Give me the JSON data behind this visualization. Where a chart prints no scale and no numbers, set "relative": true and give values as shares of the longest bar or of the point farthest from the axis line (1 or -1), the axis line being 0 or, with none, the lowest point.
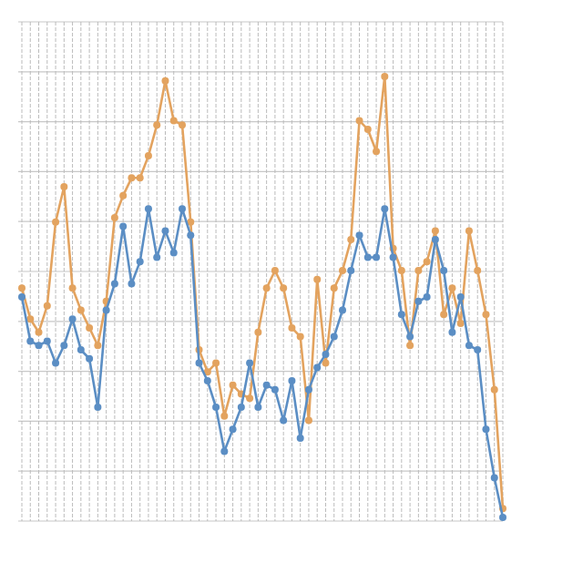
{
  "chart_data": {
    "type": "line",
    "relative": true,
    "grid": true,
    "marker": "circle",
    "categories": [
      null,
      null,
      null,
      null,
      null,
      null,
      null,
      null,
      null,
      null,
      null,
      null,
      null,
      null,
      null,
      null,
      null,
      null,
      null,
      null,
      null,
      null,
      null,
      null,
      null,
      null,
      null,
      null,
      null,
      null,
      null,
      null,
      null,
      null,
      null,
      null,
      null,
      null,
      null,
      null,
      null,
      null,
      null,
      null,
      null,
      null,
      null,
      null,
      null,
      null,
      null,
      null,
      null,
      null,
      null,
      null,
      null,
      null
    ],
    "series": [
      {
        "color": "#e3a35f",
        "values": [
          0.52,
          0.45,
          0.42,
          0.48,
          0.67,
          0.75,
          0.52,
          0.47,
          0.43,
          0.39,
          0.49,
          0.68,
          0.73,
          0.77,
          0.77,
          0.82,
          0.89,
          0.99,
          0.9,
          0.89,
          0.67,
          0.38,
          0.33,
          0.35,
          0.23,
          0.3,
          0.28,
          0.27,
          0.42,
          0.52,
          0.56,
          0.52,
          0.43,
          0.41,
          0.22,
          0.54,
          0.35,
          0.52,
          0.56,
          0.63,
          0.9,
          0.88,
          0.83,
          1.0,
          0.61,
          0.56,
          0.39,
          0.56,
          0.58,
          0.65,
          0.46,
          0.52,
          0.44,
          0.65,
          0.56,
          0.46,
          0.29,
          0.02
        ]
      },
      {
        "color": "#5b8ec4",
        "values": [
          0.5,
          0.4,
          0.39,
          0.4,
          0.35,
          0.39,
          0.45,
          0.38,
          0.36,
          0.25,
          0.47,
          0.53,
          0.66,
          0.53,
          0.58,
          0.7,
          0.59,
          0.65,
          0.6,
          0.7,
          0.64,
          0.35,
          0.31,
          0.25,
          0.15,
          0.2,
          0.25,
          0.35,
          0.25,
          0.3,
          0.29,
          0.22,
          0.31,
          0.18,
          0.29,
          0.34,
          0.37,
          0.41,
          0.47,
          0.56,
          0.64,
          0.59,
          0.59,
          0.7,
          0.59,
          0.46,
          0.41,
          0.49,
          0.5,
          0.63,
          0.56,
          0.42,
          0.5,
          0.39,
          0.38,
          0.2,
          0.09,
          0
        ]
      }
    ]
  }
}
